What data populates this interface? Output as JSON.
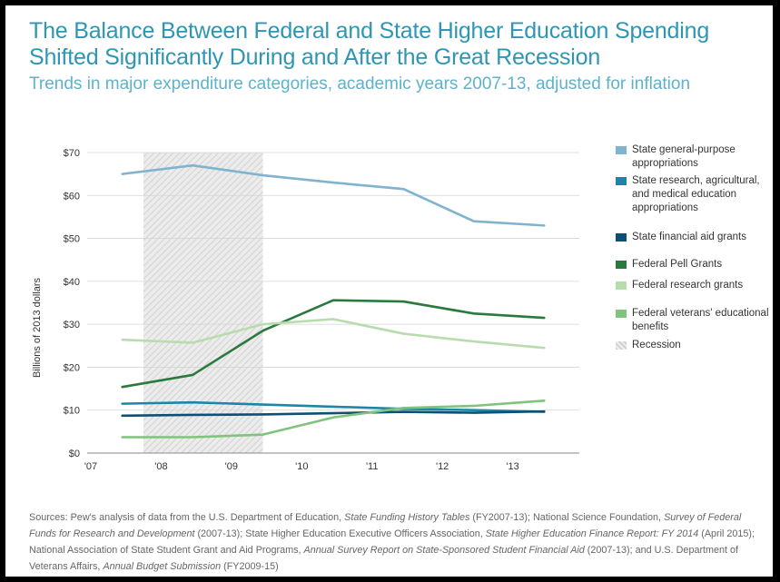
{
  "chart_data": {
    "type": "line",
    "title": "The Balance Between Federal and State Higher Education Spending Shifted Significantly During and After the Great Recession",
    "subtitle": "Trends in major expenditure categories, academic years 2007-13, adjusted for inflation",
    "xlabel": "",
    "ylabel": "Billions of 2013 dollars",
    "x_ticks": [
      "'07",
      "'08",
      "'09",
      "'10",
      "'11",
      "'12",
      "'13"
    ],
    "y_ticks": [
      "$0",
      "$10",
      "$20",
      "$30",
      "$40",
      "$50",
      "$60",
      "$70"
    ],
    "ylim": [
      0,
      70
    ],
    "xlim": [
      2007,
      2014
    ],
    "grid": "horizontal",
    "legend_position": "right",
    "x": [
      2007.5,
      2008.5,
      2009.5,
      2010.5,
      2011.5,
      2012.5,
      2013.5
    ],
    "recession": {
      "label": "Recession",
      "start": 2007.8,
      "end": 2009.5
    },
    "series": [
      {
        "name": "State general-purpose appropriations",
        "color": "#7fb3cf",
        "values": [
          65,
          67,
          64.7,
          63,
          61.5,
          54,
          53
        ]
      },
      {
        "name": "State research, agricultural, and medical education appropriations",
        "color": "#1c86a8",
        "values": [
          11.5,
          11.8,
          11.3,
          10.8,
          10.3,
          10.0,
          9.6
        ]
      },
      {
        "name": "State financial aid grants",
        "color": "#0e4f73",
        "values": [
          8.7,
          8.9,
          9.0,
          9.3,
          9.6,
          9.4,
          9.7
        ]
      },
      {
        "name": "Federal Pell Grants",
        "color": "#2a7a3f",
        "values": [
          15.4,
          18.2,
          28.5,
          35.6,
          35.3,
          32.5,
          31.5
        ]
      },
      {
        "name": "Federal research grants",
        "color": "#b9dcae",
        "values": [
          26.4,
          25.7,
          30.0,
          31.2,
          27.8,
          26.0,
          24.5
        ]
      },
      {
        "name": "Federal veterans' educational benefits",
        "color": "#7fc37c",
        "values": [
          3.7,
          3.7,
          4.3,
          8.3,
          10.5,
          11.0,
          12.2
        ]
      }
    ]
  },
  "sources": {
    "t1": "Sources: Pew's analysis of data from the U.S. Department of Education, ",
    "i1": "State Funding History Tables",
    "t2": " (FY2007-13); National Science Foundation, ",
    "i2": "Survey of Federal Funds for Research and Development",
    "t3": " (2007-13); State Higher Education Executive Officers Association, ",
    "i3": "State Higher Education Finance Report: FY 2014",
    "t4": " (April 2015); National Association of State Student Grant and Aid Programs, ",
    "i4": "Annual Survey Report on State-Sponsored Student Financial Aid",
    "t5": " (2007-13); and U.S. Department of Veterans Affairs, ",
    "i5": "Annual Budget Submission",
    "t6": " (FY2009-15)"
  }
}
